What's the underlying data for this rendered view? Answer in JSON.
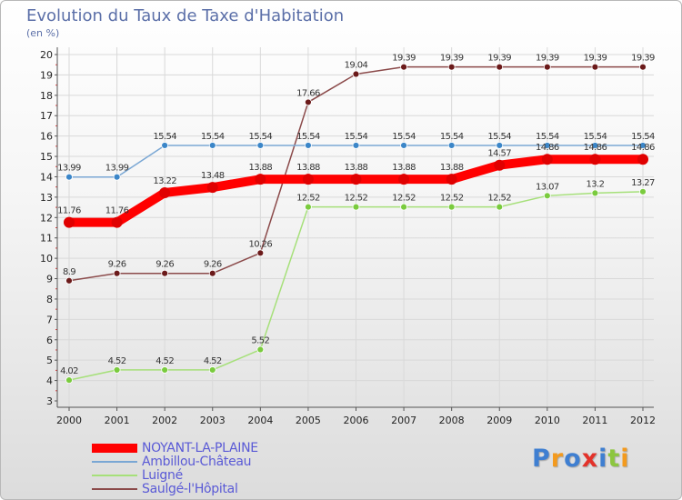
{
  "chart_data": {
    "type": "line",
    "title": "Evolution du Taux de Taxe d'Habitation",
    "subtitle": "(en %)",
    "categories": [
      "2000",
      "2001",
      "2002",
      "2003",
      "2004",
      "2005",
      "2006",
      "2007",
      "2008",
      "2009",
      "2010",
      "2011",
      "2012"
    ],
    "ylim": [
      3,
      20
    ],
    "yticks": [
      3,
      4,
      5,
      6,
      7,
      8,
      9,
      10,
      11,
      12,
      13,
      14,
      15,
      16,
      17,
      18,
      19,
      20
    ],
    "series": [
      {
        "name": "NOYANT-LA-PLAINE",
        "color": "#ff0000",
        "marker_color": "#e00000",
        "width": 10,
        "marker_r": 6,
        "values": [
          11.76,
          11.76,
          13.22,
          13.48,
          13.88,
          13.88,
          13.88,
          13.88,
          13.88,
          14.57,
          14.86,
          14.86,
          14.86
        ],
        "labels": [
          "11.76",
          "11.76",
          "13.22",
          "13.48",
          "13.88",
          "13.88",
          "13.88",
          "13.88",
          "13.88",
          "14.57",
          "14.86",
          "14.86",
          "14.86"
        ]
      },
      {
        "name": "Ambillou-Château",
        "color": "#7aa7d4",
        "marker_color": "#3b86c8",
        "width": 1.5,
        "marker_r": 3.5,
        "values": [
          13.99,
          13.99,
          15.54,
          15.54,
          15.54,
          15.54,
          15.54,
          15.54,
          15.54,
          15.54,
          15.54,
          15.54,
          15.54
        ],
        "labels": [
          "13.99",
          "13.99",
          "15.54",
          "15.54",
          "15.54",
          "15.54",
          "15.54",
          "15.54",
          "15.54",
          "15.54",
          "15.54",
          "15.54",
          "15.54"
        ]
      },
      {
        "name": "Luigné",
        "color": "#a6e07a",
        "marker_color": "#7acb3e",
        "width": 1.5,
        "marker_r": 3.5,
        "values": [
          4.02,
          4.52,
          4.52,
          4.52,
          5.52,
          12.52,
          12.52,
          12.52,
          12.52,
          12.52,
          13.07,
          13.2,
          13.27
        ],
        "labels": [
          "4.02",
          "4.52",
          "4.52",
          "4.52",
          "5.52",
          "12.52",
          "12.52",
          "12.52",
          "12.52",
          "12.52",
          "13.07",
          "13.2",
          "13.27"
        ]
      },
      {
        "name": "Saulgé-l'Hôpital",
        "color": "#8b4a4a",
        "marker_color": "#6b1a1a",
        "width": 1.5,
        "marker_r": 3.5,
        "values": [
          8.9,
          9.26,
          9.26,
          9.26,
          10.26,
          17.66,
          19.04,
          19.39,
          19.39,
          19.39,
          19.39,
          19.39,
          19.39
        ],
        "labels": [
          "8.9",
          "9.26",
          "9.26",
          "9.26",
          "10.26",
          "17.66",
          "19.04",
          "19.39",
          "19.39",
          "19.39",
          "19.39",
          "19.39",
          "19.39"
        ]
      }
    ]
  },
  "legend": {
    "items": [
      {
        "label": "NOYANT-LA-PLAINE",
        "color": "#ff0000",
        "thickness": 10
      },
      {
        "label": "Ambillou-Château",
        "color": "#7aa7d4",
        "thickness": 2
      },
      {
        "label": "Luigné",
        "color": "#a6e07a",
        "thickness": 2
      },
      {
        "label": "Saulgé-l'Hôpital",
        "color": "#8b4a4a",
        "thickness": 2
      }
    ]
  },
  "logo": {
    "text": "Proxiti",
    "letters": [
      {
        "ch": "P",
        "color": "#3f7fd1"
      },
      {
        "ch": "r",
        "color": "#f39a1e"
      },
      {
        "ch": "o",
        "color": "#3f7fd1"
      },
      {
        "ch": "x",
        "color": "#e3322a"
      },
      {
        "ch": "i",
        "color": "#3f7fd1"
      },
      {
        "ch": "t",
        "color": "#8cc63f"
      },
      {
        "ch": "i",
        "color": "#f39a1e"
      }
    ]
  }
}
